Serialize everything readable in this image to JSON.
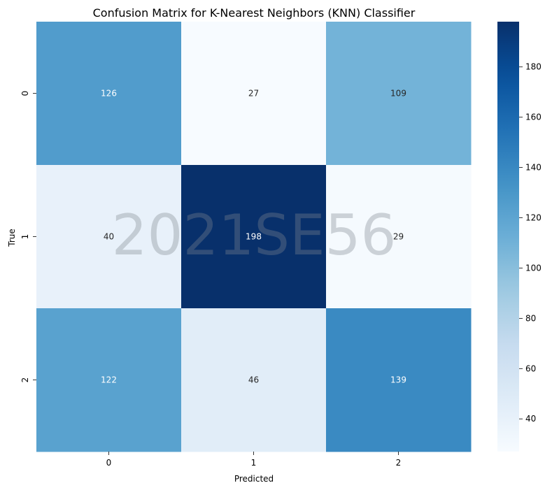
{
  "chart_data": {
    "type": "heatmap",
    "title": "Confusion Matrix for K-Nearest Neighbors (KNN) Classifier",
    "xlabel": "Predicted",
    "ylabel": "True",
    "x_categories": [
      "0",
      "1",
      "2"
    ],
    "y_categories": [
      "0",
      "1",
      "2"
    ],
    "values": [
      [
        126,
        27,
        109
      ],
      [
        40,
        198,
        29
      ],
      [
        122,
        46,
        139
      ]
    ],
    "colormap": "Blues",
    "colorbar": {
      "vmin": 27,
      "vmax": 198,
      "ticks": [
        40,
        60,
        80,
        100,
        120,
        140,
        160,
        180
      ]
    },
    "watermark": "2021SE56"
  }
}
